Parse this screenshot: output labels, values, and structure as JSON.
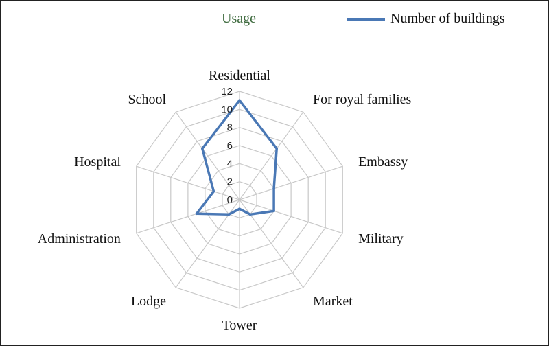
{
  "chart_data": {
    "type": "radar",
    "title": "Usage",
    "categories": [
      "Residential",
      "For royal families",
      "Embassy",
      "Military",
      "Market",
      "Tower",
      "Lodge",
      "Administration",
      "Hospital",
      "School"
    ],
    "series": [
      {
        "name": "Number of buildings",
        "color": "#4a78b5",
        "values": [
          11,
          7,
          4,
          4,
          2,
          1,
          2,
          5,
          3,
          7
        ]
      }
    ],
    "radial_ticks": [
      "0",
      "2",
      "4",
      "6",
      "8",
      "10",
      "12"
    ],
    "radial_range": [
      0,
      12
    ],
    "radial_step": 2,
    "grid": true,
    "legend_position": "top-right"
  },
  "colors": {
    "grid": "#c8c8c8",
    "series": "#4a78b5"
  }
}
